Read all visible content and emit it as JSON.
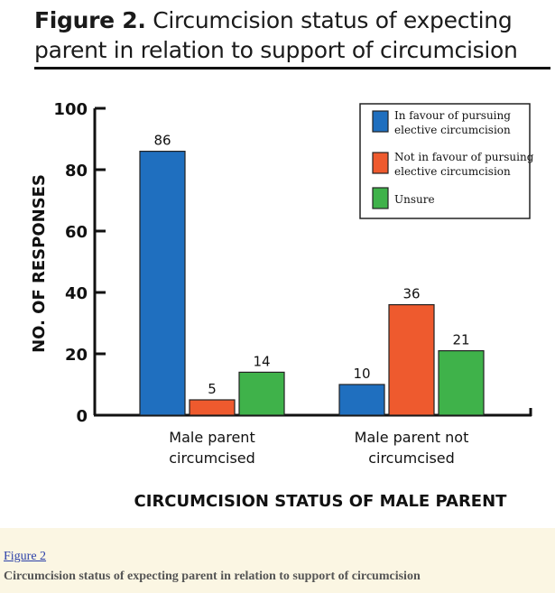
{
  "figure": {
    "title_number": "Figure 2.",
    "title_text": "Circumcision status of expecting parent in relation to support of circumcision"
  },
  "caption": {
    "link": "Figure 2",
    "text": "Circumcision status of expecting parent in relation to support of circumcision"
  },
  "chart_data": {
    "type": "bar",
    "title": "Figure 2. Circumcision status of expecting parent in relation to support of circumcision",
    "xlabel": "CIRCUMCISION STATUS OF MALE PARENT",
    "ylabel": "NO. OF RESPONSES",
    "ylim": [
      0,
      100
    ],
    "yticks": [
      0,
      20,
      40,
      60,
      80,
      100
    ],
    "categories": [
      [
        "Male parent",
        "circumcised"
      ],
      [
        "Male parent not",
        "circumcised"
      ]
    ],
    "series": [
      {
        "name_lines": [
          "In favour of pursuing",
          "elective circumcision"
        ],
        "color": "#1f6fbf",
        "values": [
          86,
          10
        ]
      },
      {
        "name_lines": [
          "Not in favour of pursuing",
          "elective circumcision"
        ],
        "color": "#ee5a2e",
        "values": [
          5,
          36
        ]
      },
      {
        "name_lines": [
          "Unsure"
        ],
        "color": "#3fb24a",
        "values": [
          14,
          21
        ]
      }
    ],
    "legend_position": "top-right",
    "grid": false
  }
}
